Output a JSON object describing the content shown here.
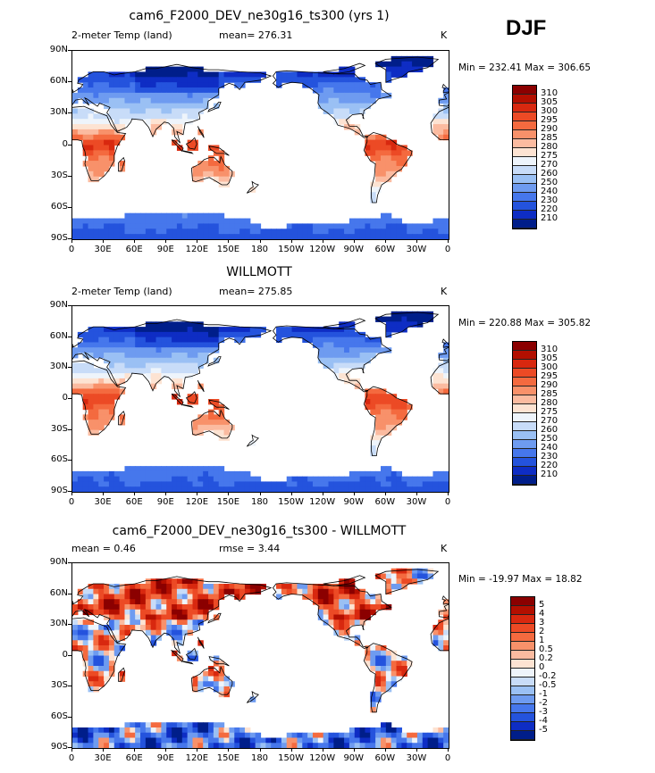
{
  "season": "DJF",
  "panels": [
    {
      "title": "cam6_F2000_DEV_ne30g16_ts300 (yrs 1)",
      "variable": "2-meter Temp (land)",
      "stat1": "mean= 276.31",
      "stat2": "",
      "units": "K",
      "minmax": "Min = 232.41  Max = 306.65",
      "colorbar": {
        "labels": [
          "310",
          "305",
          "300",
          "295",
          "290",
          "285",
          "280",
          "275",
          "270",
          "260",
          "250",
          "240",
          "230",
          "220",
          "210"
        ],
        "colors": [
          "#8b0000",
          "#b30f00",
          "#d8280f",
          "#ec4a25",
          "#f46a3f",
          "#f8916a",
          "#fbbba0",
          "#fde3d2",
          "#eef4fb",
          "#c8dcf8",
          "#9ac0f4",
          "#6e9bf0",
          "#4677ec",
          "#2453dd",
          "#0e2dc4",
          "#001e8a"
        ]
      }
    },
    {
      "title": "WILLMOTT",
      "variable": "2-meter Temp (land)",
      "stat1": "mean= 275.85",
      "stat2": "",
      "units": "K",
      "minmax": "Min = 220.88  Max = 305.82",
      "colorbar": {
        "labels": [
          "310",
          "305",
          "300",
          "295",
          "290",
          "285",
          "280",
          "275",
          "270",
          "260",
          "250",
          "240",
          "230",
          "220",
          "210"
        ],
        "colors": [
          "#8b0000",
          "#b30f00",
          "#d8280f",
          "#ec4a25",
          "#f46a3f",
          "#f8916a",
          "#fbbba0",
          "#fde3d2",
          "#eef4fb",
          "#c8dcf8",
          "#9ac0f4",
          "#6e9bf0",
          "#4677ec",
          "#2453dd",
          "#0e2dc4",
          "#001e8a"
        ]
      }
    },
    {
      "title": "cam6_F2000_DEV_ne30g16_ts300 - WILLMOTT",
      "variable": "",
      "stat1": "mean =    0.46",
      "stat2": "rmse =    3.44",
      "units": "K",
      "minmax": "Min = -19.97  Max =  18.82",
      "colorbar": {
        "labels": [
          "5",
          "4",
          "3",
          "2",
          "1",
          "0.5",
          "0.2",
          "0",
          "-0.2",
          "-0.5",
          "-1",
          "-2",
          "-3",
          "-4",
          "-5"
        ],
        "colors": [
          "#8b0000",
          "#b30f00",
          "#d8280f",
          "#ec4a25",
          "#f46a3f",
          "#f8916a",
          "#fbbba0",
          "#fde3d2",
          "#eef4fb",
          "#c8dcf8",
          "#9ac0f4",
          "#6e9bf0",
          "#4677ec",
          "#2453dd",
          "#0e2dc4",
          "#001e8a"
        ]
      }
    }
  ],
  "chart_data": {
    "type": "heatmap",
    "description_text": "DJF",
    "lat_ticks": [
      "90N",
      "60N",
      "30N",
      "0",
      "30S",
      "60S",
      "90S"
    ],
    "lon_ticks": [
      "0",
      "30E",
      "60E",
      "90E",
      "120E",
      "150E",
      "180",
      "150W",
      "120W",
      "90W",
      "60W",
      "30W",
      "0"
    ],
    "xlim": [
      0,
      360
    ],
    "ylim": [
      -90,
      90
    ],
    "panels": [
      {
        "name": "model",
        "mean": 276.31,
        "min": 232.41,
        "max": 306.65,
        "units": "K"
      },
      {
        "name": "obs",
        "mean": 275.85,
        "min": 220.88,
        "max": 305.82,
        "units": "K"
      },
      {
        "name": "difference",
        "mean": 0.46,
        "rmse": 3.44,
        "min": -19.97,
        "max": 18.82,
        "units": "K"
      }
    ]
  }
}
